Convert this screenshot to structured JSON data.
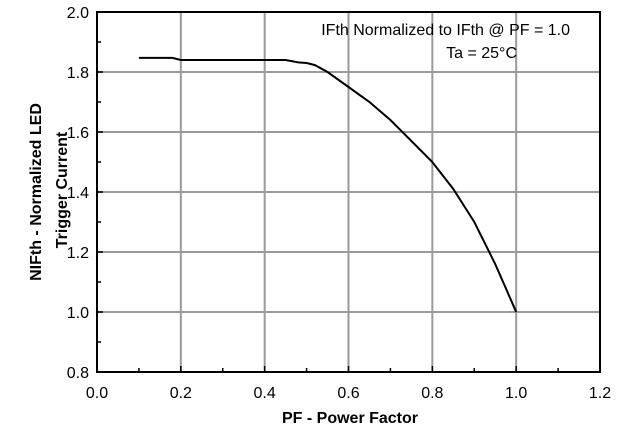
{
  "chart_data": {
    "type": "line",
    "xlabel": "PF -  Power Factor",
    "ylabel_line1": "NIFth  -  Normalized  LED",
    "ylabel_line2": "Trigger Current",
    "xlim": [
      0.0,
      1.2
    ],
    "ylim": [
      0.8,
      2.0
    ],
    "x_ticks": [
      0.0,
      0.2,
      0.4,
      0.6,
      0.8,
      1.0,
      1.2
    ],
    "y_ticks": [
      0.8,
      1.0,
      1.2,
      1.4,
      1.6,
      1.8,
      2.0
    ],
    "x_tick_labels": [
      "0.0",
      "0.2",
      "0.4",
      "0.6",
      "0.8",
      "1.0",
      "1.2"
    ],
    "y_tick_labels": [
      "0.8",
      "1.0",
      "1.2",
      "1.4",
      "1.6",
      "1.8",
      "2.0"
    ],
    "grid": true,
    "annotations": [
      "IFth  Normalized  to IFth @  PF = 1.0",
      "Ta = 25°C"
    ],
    "series": [
      {
        "x": [
          0.1,
          0.18,
          0.2,
          0.3,
          0.4,
          0.45,
          0.48,
          0.5,
          0.52,
          0.55,
          0.6,
          0.65,
          0.7,
          0.75,
          0.8,
          0.85,
          0.9,
          0.95,
          1.0
        ],
        "y": [
          1.847,
          1.847,
          1.84,
          1.84,
          1.84,
          1.84,
          1.832,
          1.83,
          1.823,
          1.8,
          1.75,
          1.7,
          1.64,
          1.57,
          1.5,
          1.41,
          1.3,
          1.16,
          1.0
        ]
      }
    ]
  }
}
